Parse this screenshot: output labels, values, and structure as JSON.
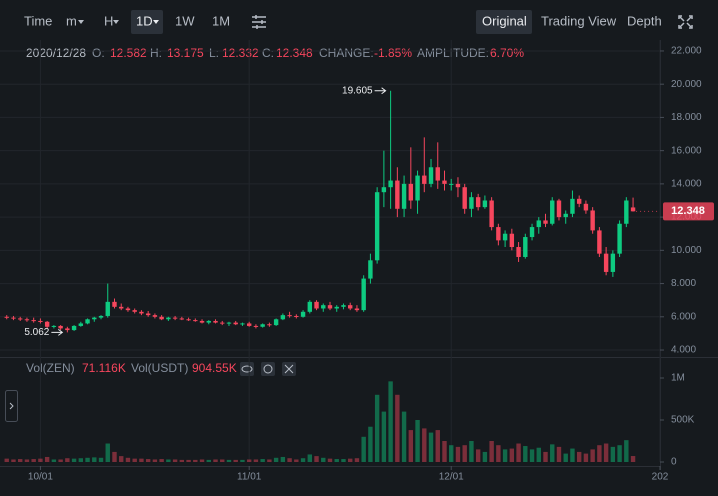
{
  "toolbar": {
    "left": [
      "Time",
      "m",
      "H",
      "1D",
      "1W",
      "1M"
    ],
    "right": [
      "Original",
      "Trading View",
      "Depth"
    ]
  },
  "ohlc_header": {
    "date": "2020/12/28",
    "open_label": "O:",
    "high_label": "H:",
    "low_label": "L:",
    "close_label": "C:",
    "change_label": "CHANGE:",
    "change": "-1.85%",
    "amplitude_label": "AMPLITUDE:",
    "amplitude": "6.70%"
  },
  "chart_data": {
    "type": "candlestick",
    "x": [
      "2020-09-26",
      "2020-09-27",
      "2020-09-28",
      "2020-09-29",
      "2020-09-30",
      "2020-10-01",
      "2020-10-02",
      "2020-10-03",
      "2020-10-04",
      "2020-10-05",
      "2020-10-06",
      "2020-10-07",
      "2020-10-08",
      "2020-10-09",
      "2020-10-10",
      "2020-10-11",
      "2020-10-12",
      "2020-10-13",
      "2020-10-14",
      "2020-10-15",
      "2020-10-16",
      "2020-10-17",
      "2020-10-18",
      "2020-10-19",
      "2020-10-20",
      "2020-10-21",
      "2020-10-22",
      "2020-10-23",
      "2020-10-24",
      "2020-10-25",
      "2020-10-26",
      "2020-10-27",
      "2020-10-28",
      "2020-10-29",
      "2020-10-30",
      "2020-10-31",
      "2020-11-01",
      "2020-11-02",
      "2020-11-03",
      "2020-11-04",
      "2020-11-05",
      "2020-11-06",
      "2020-11-07",
      "2020-11-08",
      "2020-11-09",
      "2020-11-10",
      "2020-11-11",
      "2020-11-12",
      "2020-11-13",
      "2020-11-14",
      "2020-11-15",
      "2020-11-16",
      "2020-11-17",
      "2020-11-18",
      "2020-11-19",
      "2020-11-20",
      "2020-11-21",
      "2020-11-22",
      "2020-11-23",
      "2020-11-24",
      "2020-11-25",
      "2020-11-26",
      "2020-11-27",
      "2020-11-28",
      "2020-11-29",
      "2020-11-30",
      "2020-12-01",
      "2020-12-02",
      "2020-12-03",
      "2020-12-04",
      "2020-12-05",
      "2020-12-06",
      "2020-12-07",
      "2020-12-08",
      "2020-12-09",
      "2020-12-10",
      "2020-12-11",
      "2020-12-12",
      "2020-12-13",
      "2020-12-14",
      "2020-12-15",
      "2020-12-16",
      "2020-12-17",
      "2020-12-18",
      "2020-12-19",
      "2020-12-20",
      "2020-12-21",
      "2020-12-22",
      "2020-12-23",
      "2020-12-24",
      "2020-12-25",
      "2020-12-26",
      "2020-12-27",
      "2020-12-28"
    ],
    "open": [
      6.0,
      5.95,
      5.9,
      5.85,
      5.8,
      5.75,
      5.7,
      5.4,
      5.45,
      5.3,
      5.2,
      5.45,
      5.6,
      5.85,
      5.95,
      6.05,
      6.9,
      6.6,
      6.5,
      6.4,
      6.3,
      6.2,
      6.1,
      6.0,
      5.85,
      5.95,
      5.9,
      5.85,
      5.8,
      5.75,
      5.65,
      5.75,
      5.65,
      5.6,
      5.65,
      5.55,
      5.6,
      5.45,
      5.4,
      5.55,
      5.5,
      5.85,
      6.1,
      6.05,
      6.0,
      6.3,
      6.9,
      6.5,
      6.7,
      6.5,
      6.6,
      6.7,
      6.5,
      6.4,
      8.3,
      9.4,
      13.5,
      13.8,
      14.2,
      12.5,
      14.0,
      13.0,
      14.5,
      14.0,
      15.0,
      14.2,
      14.0,
      14.0,
      13.8,
      12.5,
      13.2,
      12.6,
      13.0,
      11.4,
      10.6,
      11.0,
      10.2,
      9.6,
      10.8,
      11.4,
      11.8,
      11.6,
      13.0,
      12.0,
      12.2,
      13.1,
      12.8,
      12.4,
      11.2,
      9.8,
      8.7,
      9.8,
      11.6,
      12.582
    ],
    "high": [
      6.1,
      6.05,
      6.0,
      5.95,
      5.95,
      5.9,
      5.75,
      5.5,
      5.5,
      5.4,
      5.5,
      5.7,
      5.9,
      6.0,
      6.1,
      8.0,
      7.1,
      6.8,
      6.6,
      6.5,
      6.4,
      6.35,
      6.2,
      6.1,
      6.0,
      6.05,
      6.0,
      5.95,
      5.9,
      5.85,
      5.8,
      5.85,
      5.75,
      5.7,
      5.75,
      5.65,
      5.7,
      5.55,
      5.6,
      5.65,
      5.9,
      6.2,
      6.3,
      6.15,
      6.4,
      7.0,
      7.0,
      6.8,
      6.9,
      6.7,
      6.8,
      6.85,
      6.7,
      8.5,
      9.8,
      13.8,
      16.0,
      19.605,
      15.0,
      14.5,
      16.2,
      14.8,
      16.8,
      15.5,
      16.5,
      14.8,
      14.3,
      14.4,
      14.0,
      13.5,
      13.4,
      13.3,
      13.2,
      11.6,
      11.2,
      11.3,
      10.5,
      11.0,
      11.6,
      12.0,
      12.2,
      13.2,
      13.1,
      12.4,
      13.6,
      13.3,
      13.0,
      12.6,
      11.4,
      10.2,
      10.0,
      11.8,
      13.2,
      13.175
    ],
    "low": [
      5.85,
      5.8,
      5.75,
      5.7,
      5.65,
      5.6,
      5.3,
      5.3,
      5.2,
      5.062,
      5.15,
      5.4,
      5.55,
      5.7,
      5.85,
      5.95,
      6.5,
      6.4,
      6.3,
      6.2,
      6.1,
      6.0,
      5.9,
      5.8,
      5.75,
      5.8,
      5.8,
      5.75,
      5.7,
      5.6,
      5.55,
      5.6,
      5.5,
      5.45,
      5.5,
      5.45,
      5.4,
      5.3,
      5.35,
      5.4,
      5.45,
      5.8,
      5.95,
      5.9,
      5.95,
      6.2,
      6.4,
      6.3,
      6.4,
      6.3,
      6.45,
      6.4,
      6.3,
      6.3,
      8.0,
      9.2,
      12.6,
      12.5,
      12.0,
      12.0,
      12.5,
      12.2,
      13.5,
      13.8,
      13.7,
      13.6,
      13.6,
      13.2,
      12.2,
      12.0,
      12.4,
      12.5,
      11.2,
      10.3,
      10.2,
      10.0,
      9.3,
      9.5,
      10.6,
      11.0,
      11.4,
      11.5,
      11.8,
      11.6,
      12.0,
      12.6,
      12.2,
      11.0,
      9.6,
      8.5,
      8.4,
      9.6,
      11.4,
      12.332
    ],
    "close": [
      5.95,
      5.9,
      5.85,
      5.8,
      5.75,
      5.7,
      5.4,
      5.45,
      5.3,
      5.2,
      5.45,
      5.6,
      5.85,
      5.95,
      6.05,
      6.9,
      6.6,
      6.5,
      6.4,
      6.3,
      6.2,
      6.1,
      6.0,
      5.85,
      5.95,
      5.9,
      5.85,
      5.8,
      5.75,
      5.65,
      5.75,
      5.65,
      5.6,
      5.65,
      5.55,
      5.6,
      5.45,
      5.4,
      5.55,
      5.5,
      5.85,
      6.1,
      6.05,
      6.0,
      6.3,
      6.9,
      6.5,
      6.7,
      6.5,
      6.6,
      6.7,
      6.5,
      6.4,
      8.3,
      9.4,
      13.5,
      13.8,
      14.2,
      12.5,
      14.0,
      13.0,
      14.5,
      14.0,
      15.0,
      14.2,
      14.0,
      14.0,
      13.8,
      12.5,
      13.2,
      12.6,
      13.0,
      11.4,
      10.6,
      11.0,
      10.2,
      9.6,
      10.8,
      11.4,
      11.8,
      11.6,
      13.0,
      12.0,
      12.2,
      13.1,
      12.8,
      12.4,
      11.2,
      9.8,
      8.7,
      9.8,
      11.6,
      13.0,
      12.348
    ],
    "up_color": "#0ecb81",
    "down_color": "#f6465d",
    "xlim": [
      "2020-09-25",
      "2021-01-01"
    ],
    "xticks": [
      {
        "value": "2020-10-01",
        "label": "10/01"
      },
      {
        "value": "2020-11-01",
        "label": "11/01"
      },
      {
        "value": "2020-12-01",
        "label": "12/01"
      },
      {
        "value": "2021-01-01",
        "label": "202"
      }
    ],
    "ylim": [
      3.58,
      22.66
    ],
    "yticks": [
      {
        "value": 4,
        "label": "4.000"
      },
      {
        "value": 6,
        "label": "6.000"
      },
      {
        "value": 8,
        "label": "8.000"
      },
      {
        "value": 10,
        "label": "10.000"
      },
      {
        "value": 12,
        "label": "12.000"
      },
      {
        "value": 14,
        "label": "14.000"
      },
      {
        "value": 16,
        "label": "16.000"
      },
      {
        "value": 18,
        "label": "18.000"
      },
      {
        "value": 20,
        "label": "20.000"
      },
      {
        "value": 22,
        "label": "22.000"
      }
    ],
    "grid": true,
    "volume": {
      "legend": [
        {
          "name": "Vol(ZEN)",
          "value_label": "71.116K"
        },
        {
          "name": "Vol(USDT)",
          "value_label": "904.55K"
        }
      ],
      "values": [
        40000,
        30000,
        35000,
        30000,
        35000,
        40000,
        60000,
        30000,
        30000,
        45000,
        40000,
        45000,
        50000,
        55000,
        50000,
        220000,
        120000,
        70000,
        50000,
        40000,
        40000,
        35000,
        30000,
        35000,
        30000,
        30000,
        25000,
        25000,
        25000,
        30000,
        25000,
        30000,
        30000,
        25000,
        25000,
        25000,
        30000,
        30000,
        35000,
        30000,
        50000,
        60000,
        45000,
        30000,
        45000,
        90000,
        70000,
        50000,
        40000,
        35000,
        35000,
        40000,
        45000,
        300000,
        420000,
        800000,
        600000,
        960000,
        800000,
        600000,
        380000,
        500000,
        400000,
        350000,
        380000,
        250000,
        200000,
        180000,
        200000,
        250000,
        150000,
        120000,
        250000,
        200000,
        150000,
        160000,
        220000,
        190000,
        150000,
        170000,
        120000,
        210000,
        180000,
        100000,
        160000,
        120000,
        100000,
        150000,
        200000,
        220000,
        180000,
        200000,
        260000,
        71116
      ],
      "ylim": [
        0,
        1250000
      ],
      "yticks": [
        0,
        {
          "value": 500000,
          "label": "500K"
        },
        {
          "value": 1000000,
          "label": "1M"
        }
      ]
    }
  }
}
